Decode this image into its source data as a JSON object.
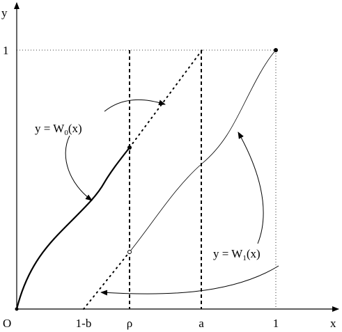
{
  "axes": {
    "y_label": "y",
    "x_label": "x",
    "origin": "O"
  },
  "x_ticks": [
    "1-b",
    "ρ",
    "a",
    "1"
  ],
  "y_ticks": [
    "1"
  ],
  "annotations": [
    {
      "parts": [
        "y = W",
        "0",
        "(x)"
      ]
    },
    {
      "parts": [
        "y = W",
        "1",
        "(x)"
      ]
    }
  ]
}
